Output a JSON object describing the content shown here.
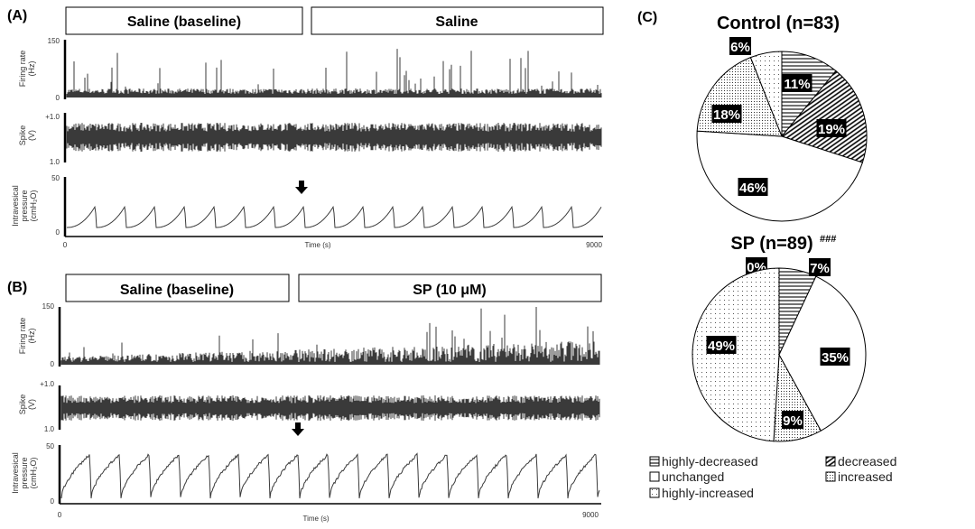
{
  "panels": {
    "A": {
      "label": "(A)",
      "conditions": [
        "Saline (baseline)",
        "Saline"
      ],
      "traces": [
        {
          "name": "firing-rate",
          "ylabel": [
            "Firing rate",
            "(Hz)"
          ],
          "ymax": "150",
          "ymin": "0"
        },
        {
          "name": "spike",
          "ylabel": [
            "Spike",
            "(V)"
          ],
          "ymax": "+1.0",
          "ymin": "1.0"
        },
        {
          "name": "pressure",
          "ylabel": [
            "Intravesical",
            "pressure",
            "(cmH₂O)"
          ],
          "ymax": "50",
          "ymin": "0"
        }
      ],
      "xlabel": "Time (s)",
      "xmin": "0",
      "xmax": "9000"
    },
    "B": {
      "label": "(B)",
      "conditions": [
        "Saline (baseline)",
        "SP (10 μM)"
      ],
      "traces": [
        {
          "name": "firing-rate",
          "ylabel": [
            "Firing rate",
            "(Hz)"
          ],
          "ymax": "150",
          "ymin": "0"
        },
        {
          "name": "spike",
          "ylabel": [
            "Spike",
            "(V)"
          ],
          "ymax": "+1.0",
          "ymin": "1.0"
        },
        {
          "name": "pressure",
          "ylabel": [
            "Intravesical",
            "pressure",
            "(cmH₂O)"
          ],
          "ymax": "50",
          "ymin": "0"
        }
      ],
      "xlabel": "Time (s)",
      "xmin": "0",
      "xmax": "9000"
    },
    "C": {
      "label": "(C)"
    }
  },
  "chart_data": [
    {
      "type": "line",
      "panel": "A",
      "xlabel": "Time (s)",
      "xlim": [
        0,
        9000
      ],
      "series": [
        "Firing rate (Hz)",
        "Spike (V)",
        "Intravesical pressure (cmH2O)"
      ],
      "arrow_at": 4500
    },
    {
      "type": "line",
      "panel": "B",
      "xlabel": "Time (s)",
      "xlim": [
        0,
        9000
      ],
      "series": [
        "Firing rate (Hz)",
        "Spike (V)",
        "Intravesical pressure (cmH2O)"
      ],
      "arrow_at": 4500
    },
    {
      "type": "pie",
      "title": "Control (n=83)",
      "categories": [
        "highly-decreased",
        "decreased",
        "unchanged",
        "increased",
        "highly-increased"
      ],
      "values": [
        11,
        19,
        46,
        18,
        6
      ],
      "labels": [
        "11%",
        "19%",
        "46%",
        "18%",
        "6%"
      ]
    },
    {
      "type": "pie",
      "title": "SP (n=89)",
      "title_mark": "###",
      "categories": [
        "highly-decreased",
        "decreased",
        "unchanged",
        "increased",
        "highly-increased"
      ],
      "values": [
        7,
        0,
        35,
        9,
        49
      ],
      "labels": [
        "7%",
        "0%",
        "35%",
        "9%",
        "49%"
      ]
    }
  ],
  "legend": {
    "items": [
      {
        "label": "highly-decreased",
        "pattern": "hstripe"
      },
      {
        "label": "decreased",
        "pattern": "dark"
      },
      {
        "label": "unchanged",
        "pattern": "white"
      },
      {
        "label": "increased",
        "pattern": "dots"
      },
      {
        "label": "highly-increased",
        "pattern": "sparse"
      }
    ]
  },
  "colors": {
    "trace": "#3a3a3a",
    "ink": "#000000"
  }
}
